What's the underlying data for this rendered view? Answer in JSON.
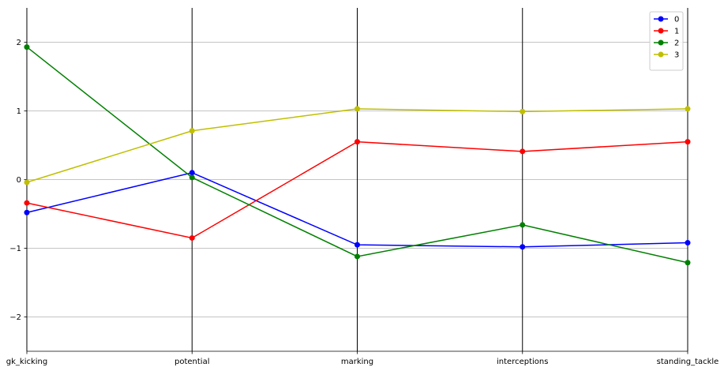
{
  "chart_data": {
    "type": "line",
    "subtype": "parallel-coordinates",
    "title": "",
    "xlabel": "",
    "ylabel": "",
    "categories": [
      "gk_kicking",
      "potential",
      "marking",
      "interceptions",
      "standing_tackle"
    ],
    "ylim": [
      -2.5,
      2.5
    ],
    "yticks": [
      2,
      1,
      0,
      -1,
      -2
    ],
    "ytick_labels": [
      "2",
      "1",
      "0",
      "−1",
      "−2"
    ],
    "grid": "horizontal gridlines at y ticks; vertical black lines at each category",
    "legend_position": "top-right",
    "series": [
      {
        "name": "0",
        "color": "#0000ff",
        "values": [
          -0.48,
          0.1,
          -0.95,
          -0.98,
          -0.92
        ]
      },
      {
        "name": "1",
        "color": "#ff0000",
        "values": [
          -0.34,
          -0.85,
          0.55,
          0.41,
          0.55
        ]
      },
      {
        "name": "2",
        "color": "#008000",
        "values": [
          1.93,
          0.03,
          -1.12,
          -0.66,
          -1.21
        ]
      },
      {
        "name": "3",
        "color": "#bfbf00",
        "values": [
          -0.04,
          0.71,
          1.03,
          0.99,
          1.03
        ]
      }
    ]
  }
}
